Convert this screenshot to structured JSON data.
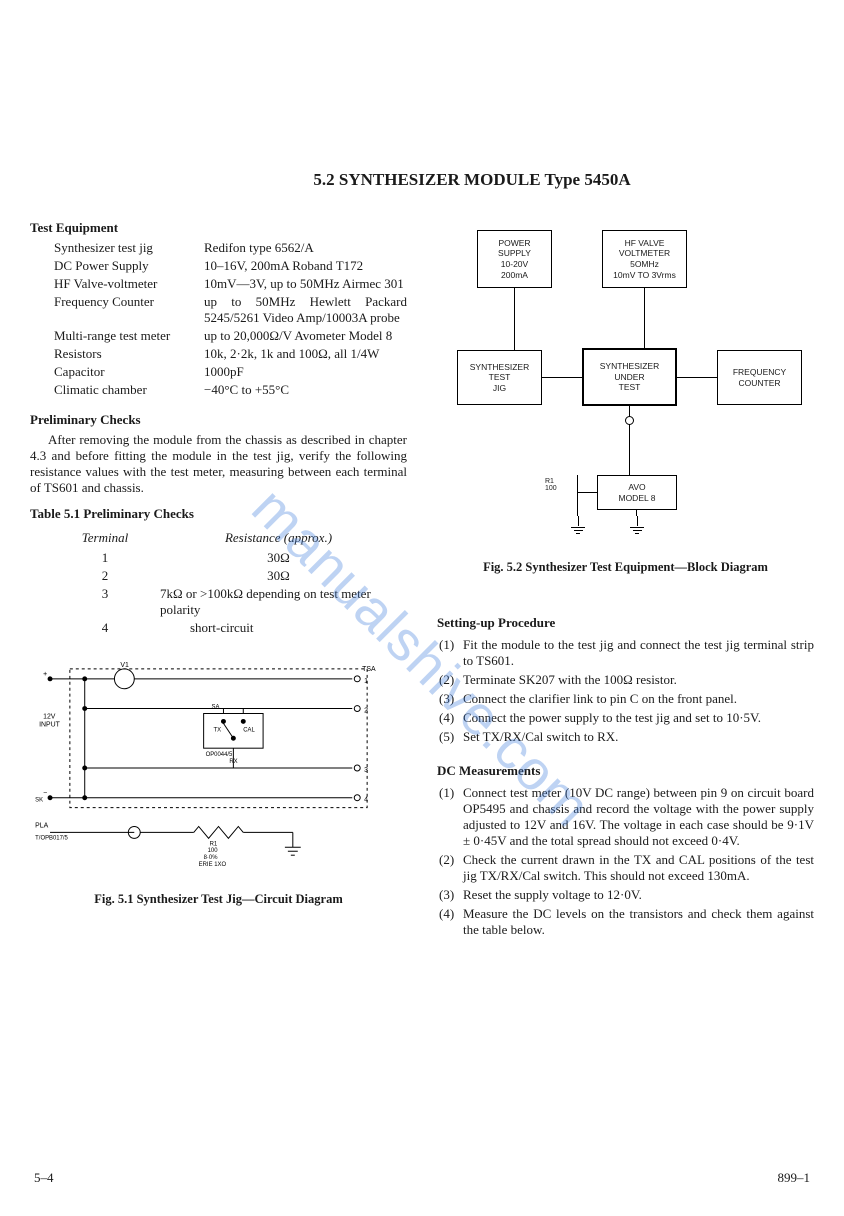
{
  "title": "5.2   SYNTHESIZER MODULE Type 5450A",
  "watermark": "manualshive.com",
  "headings": {
    "test_equipment": "Test Equipment",
    "prelim_checks": "Preliminary Checks",
    "table_5_1": "Table 5.1   Preliminary Checks",
    "fig_5_1": "Fig. 5.1 Synthesizer Test Jig—Circuit Diagram",
    "fig_5_2": "Fig. 5.2  Synthesizer  Test  Equipment—Block  Diagram",
    "setup": "Setting-up Procedure",
    "dc_meas": "DC Measurements"
  },
  "equipment": [
    {
      "label": "Synthesizer test jig",
      "value": "Redifon type 6562/A"
    },
    {
      "label": "DC Power Supply",
      "value": "10–16V, 200mA Roband T172"
    },
    {
      "label": "HF Valve-voltmeter",
      "value": "10mV—3V, up to 50MHz Airmec 301"
    },
    {
      "label": "Frequency Counter",
      "value": "up to 50MHz Hewlett Packard 5245/5261 Video Amp/10003A probe"
    },
    {
      "label": "Multi-range test meter",
      "value": "up to 20,000Ω/V Avometer Model 8"
    },
    {
      "label": "Resistors",
      "value": "10k, 2·2k, 1k and 100Ω, all 1/4W"
    },
    {
      "label": "Capacitor",
      "value": "1000pF"
    },
    {
      "label": "Climatic chamber",
      "value": "−40°C to +55°C"
    }
  ],
  "prelim_body": "After removing the module from the chassis as described in chapter 4.3 and before fitting the module in the test jig, verify the following resistance values with the test meter, measuring between each terminal of TS601 and chassis.",
  "prelim_table": {
    "head_terminal": "Terminal",
    "head_resistance": "Resistance (approx.)",
    "rows": [
      {
        "t": "1",
        "r": "30Ω"
      },
      {
        "t": "2",
        "r": "30Ω"
      },
      {
        "t": "3",
        "r": "7kΩ or >100kΩ depending on test meter polarity"
      },
      {
        "t": "4",
        "r": "short-circuit"
      }
    ]
  },
  "block_diagram": {
    "boxes": {
      "power": "POWER\nSUPPLY\n10-20V\n200mA",
      "voltmeter": "HF VALVE\nVOLTMETER\n5OMHz\n10mV TO 3Vrms",
      "jig": "SYNTHESIZER\nTEST\nJIG",
      "dut": "SYNTHESIZER\nUNDER\nTEST",
      "counter": "FREQUENCY\nCOUNTER",
      "avo": "AVO\nMODEL 8"
    },
    "r_label": "R1\n100"
  },
  "circuit_labels": {
    "plus": "+",
    "minus": "−",
    "v1": "V1",
    "tsa": "TSA",
    "in12v": "12V\nINPUT",
    "sa": "SA\nOP0044/5",
    "tx": "TX",
    "cal": "CAL",
    "rx": "RX",
    "sk": "SK",
    "pla": "PLA",
    "plug": "T/OPB017/5",
    "r1": "R1\n100\n8·0%\nERIE 1XO"
  },
  "setup_steps": [
    "Fit the module to the test jig and connect the test jig terminal strip to TS601.",
    "Terminate SK207 with the 100Ω resistor.",
    "Connect the clarifier link to pin C on the front panel.",
    "Connect the power supply to the test jig and set to 10·5V.",
    "Set TX/RX/Cal switch to RX."
  ],
  "dc_steps": [
    "Connect test meter (10V DC range) between pin 9 on circuit board OP5495 and chassis and record the voltage with the power supply adjusted to 12V and 16V. The voltage in each case should be 9·1V ± 0·45V and the total spread should not exceed 0·4V.",
    "Check the current drawn in the TX and CAL positions of the test jig TX/RX/Cal switch. This should not exceed 130mA.",
    "Reset the supply voltage to 12·0V.",
    "Measure the DC levels on the transistors and check them against the table below."
  ],
  "footer": {
    "left": "5–4",
    "right": "899–1"
  },
  "colors": {
    "text": "#1a1a1a",
    "watermark": "rgba(70,130,220,0.35)",
    "bg": "#ffffff"
  }
}
